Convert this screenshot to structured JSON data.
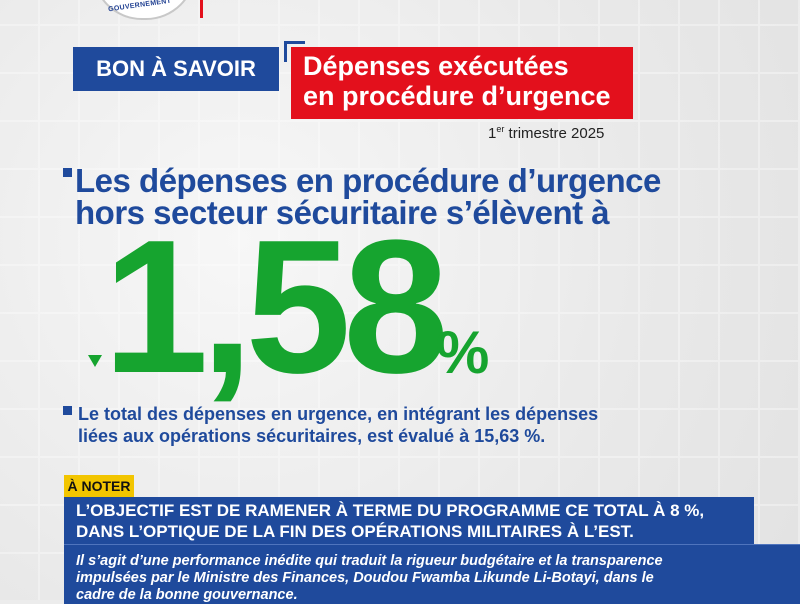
{
  "logo": {
    "text": "GOUVERNEMENT"
  },
  "header": {
    "badge": "BON À SAVOIR",
    "title_line1": "Dépenses exécutées",
    "title_line2": "en procédure d’urgence",
    "period_sup": "er",
    "period_num": "1",
    "period_rest": " trimestre 2025"
  },
  "statement": {
    "line1": "Les dépenses en procédure d’urgence",
    "line2": "hors secteur sécuritaire s’élèvent à",
    "value": "1,58",
    "unit": "%",
    "trend": "down"
  },
  "detail": {
    "line1": "Le total des dépenses en urgence, en intégrant les dépenses",
    "line2": "liées aux opérations sécuritaires, est évalué à 15,63 %."
  },
  "note": {
    "label": "À NOTER",
    "main_line1": "L’OBJECTIF EST DE RAMENER À TERME DU PROGRAMME CE TOTAL À 8 %,",
    "main_line2": "DANS L’OPTIQUE DE LA FIN DES OPÉRATIONS MILITAIRES À L’EST.",
    "body_line1": "Il s’agit d’une performance inédite qui traduit la rigueur budgétaire et la transparence",
    "body_line2": "impulsées par le Ministre des Finances, Doudou Fwamba Likunde Li-Botayi, dans le",
    "body_line3": "cadre de la bonne gouvernance."
  },
  "colors": {
    "blue": "#1f4a9c",
    "red": "#e3101c",
    "green": "#16a42f",
    "yellow": "#f2c500"
  }
}
